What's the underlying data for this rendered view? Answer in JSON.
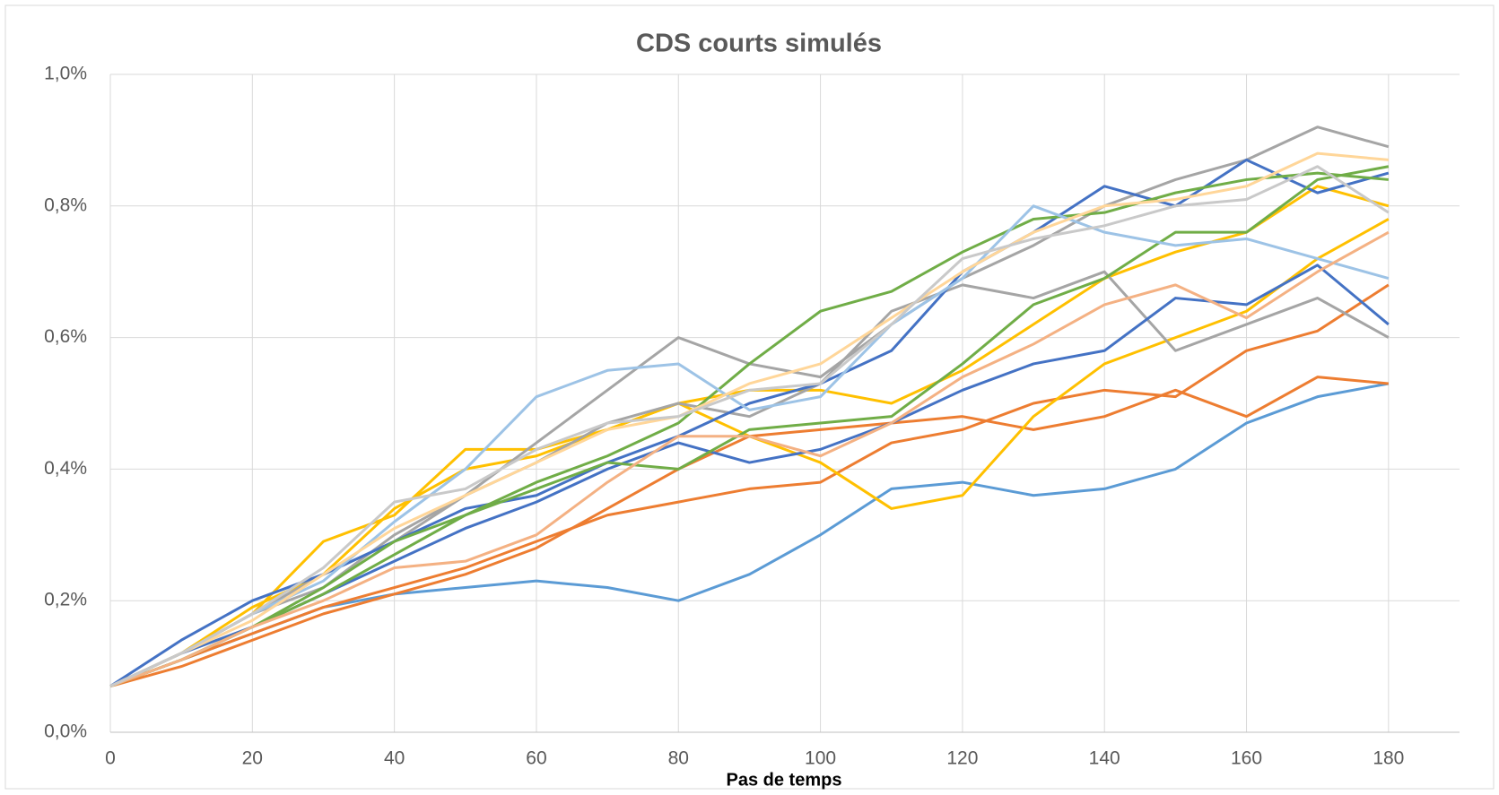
{
  "chart_data": {
    "type": "line",
    "title": "CDS courts simulés",
    "x_label": "Pas de temps",
    "x": [
      0,
      10,
      20,
      30,
      40,
      50,
      60,
      70,
      80,
      90,
      100,
      110,
      120,
      130,
      140,
      150,
      160,
      170,
      180
    ],
    "xlim": [
      0,
      190
    ],
    "xticks": [
      0,
      20,
      40,
      60,
      80,
      100,
      120,
      140,
      160,
      180
    ],
    "ylim": [
      0,
      1.0
    ],
    "yticks": [
      {
        "value": 0,
        "label": "0,0%"
      },
      {
        "value": 0.2,
        "label": "0,2%"
      },
      {
        "value": 0.4,
        "label": "0,4%"
      },
      {
        "value": 0.6,
        "label": "0,6%"
      },
      {
        "value": 0.8,
        "label": "0,8%"
      },
      {
        "value": 1.0,
        "label": "1,0%"
      }
    ],
    "grid": true,
    "series": [
      {
        "color": "#5b9bd5",
        "values": [
          0.07,
          0.11,
          0.15,
          0.19,
          0.21,
          0.22,
          0.23,
          0.22,
          0.2,
          0.24,
          0.3,
          0.37,
          0.38,
          0.36,
          0.37,
          0.4,
          0.47,
          0.51,
          0.53
        ]
      },
      {
        "color": "#ed7d31",
        "values": [
          0.07,
          0.11,
          0.15,
          0.19,
          0.22,
          0.25,
          0.29,
          0.33,
          0.35,
          0.37,
          0.38,
          0.44,
          0.46,
          0.5,
          0.52,
          0.51,
          0.58,
          0.61,
          0.68
        ]
      },
      {
        "color": "#ed7d31",
        "values": [
          0.07,
          0.1,
          0.14,
          0.18,
          0.21,
          0.24,
          0.28,
          0.34,
          0.4,
          0.45,
          0.46,
          0.47,
          0.48,
          0.46,
          0.48,
          0.52,
          0.48,
          0.54,
          0.53
        ]
      },
      {
        "color": "#ffc000",
        "values": [
          0.07,
          0.12,
          0.18,
          0.29,
          0.33,
          0.43,
          0.43,
          0.46,
          0.5,
          0.45,
          0.41,
          0.34,
          0.36,
          0.48,
          0.56,
          0.6,
          0.64,
          0.72,
          0.78
        ]
      },
      {
        "color": "#ffc000",
        "values": [
          0.07,
          0.12,
          0.19,
          0.24,
          0.34,
          0.4,
          0.42,
          0.46,
          0.5,
          0.52,
          0.52,
          0.5,
          0.55,
          0.62,
          0.69,
          0.73,
          0.76,
          0.83,
          0.8
        ]
      },
      {
        "color": "#a5a5a5",
        "values": [
          0.07,
          0.12,
          0.18,
          0.24,
          0.29,
          0.36,
          0.44,
          0.52,
          0.6,
          0.56,
          0.54,
          0.62,
          0.69,
          0.74,
          0.8,
          0.84,
          0.87,
          0.92,
          0.89
        ]
      },
      {
        "color": "#a5a5a5",
        "values": [
          0.07,
          0.12,
          0.18,
          0.22,
          0.3,
          0.36,
          0.41,
          0.47,
          0.5,
          0.48,
          0.53,
          0.64,
          0.68,
          0.66,
          0.7,
          0.58,
          0.62,
          0.66,
          0.6
        ]
      },
      {
        "color": "#4472c4",
        "values": [
          0.07,
          0.14,
          0.2,
          0.24,
          0.29,
          0.34,
          0.36,
          0.41,
          0.45,
          0.5,
          0.53,
          0.58,
          0.7,
          0.76,
          0.83,
          0.8,
          0.87,
          0.82,
          0.85
        ]
      },
      {
        "color": "#4472c4",
        "values": [
          0.07,
          0.12,
          0.16,
          0.21,
          0.26,
          0.31,
          0.35,
          0.4,
          0.44,
          0.41,
          0.43,
          0.47,
          0.52,
          0.56,
          0.58,
          0.66,
          0.65,
          0.71,
          0.62
        ]
      },
      {
        "color": "#70ad47",
        "values": [
          0.07,
          0.11,
          0.16,
          0.22,
          0.29,
          0.33,
          0.38,
          0.42,
          0.47,
          0.56,
          0.64,
          0.67,
          0.73,
          0.78,
          0.79,
          0.82,
          0.84,
          0.85,
          0.84
        ]
      },
      {
        "color": "#70ad47",
        "values": [
          0.07,
          0.11,
          0.16,
          0.21,
          0.27,
          0.33,
          0.37,
          0.41,
          0.4,
          0.46,
          0.47,
          0.48,
          0.56,
          0.65,
          0.69,
          0.76,
          0.76,
          0.84,
          0.86
        ]
      },
      {
        "color": "#9dc3e6",
        "values": [
          0.07,
          0.12,
          0.18,
          0.23,
          0.32,
          0.4,
          0.51,
          0.55,
          0.56,
          0.49,
          0.51,
          0.62,
          0.69,
          0.8,
          0.76,
          0.74,
          0.75,
          0.72,
          0.69
        ]
      },
      {
        "color": "#f4b183",
        "values": [
          0.07,
          0.11,
          0.16,
          0.2,
          0.25,
          0.26,
          0.3,
          0.38,
          0.45,
          0.45,
          0.42,
          0.47,
          0.54,
          0.59,
          0.65,
          0.68,
          0.63,
          0.7,
          0.76
        ]
      },
      {
        "color": "#ffd699",
        "values": [
          0.07,
          0.12,
          0.17,
          0.24,
          0.31,
          0.36,
          0.41,
          0.46,
          0.48,
          0.53,
          0.56,
          0.63,
          0.7,
          0.76,
          0.8,
          0.81,
          0.83,
          0.88,
          0.87
        ]
      },
      {
        "color": "#c9c9c9",
        "values": [
          0.07,
          0.12,
          0.18,
          0.25,
          0.35,
          0.37,
          0.43,
          0.47,
          0.48,
          0.52,
          0.53,
          0.62,
          0.72,
          0.75,
          0.77,
          0.8,
          0.81,
          0.86,
          0.79
        ]
      }
    ]
  }
}
